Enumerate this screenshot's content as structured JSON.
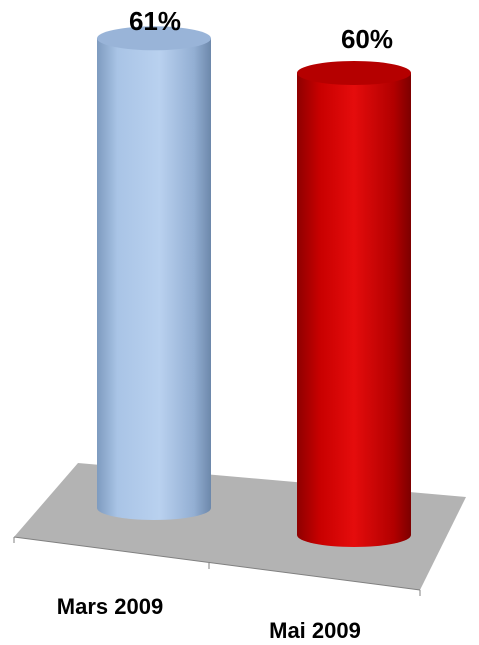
{
  "chart_data": {
    "type": "bar",
    "style": "3d-cylinder",
    "categories": [
      "Mars 2009",
      "Mai 2009"
    ],
    "values": [
      61,
      60
    ],
    "value_labels": [
      "61%",
      "60%"
    ],
    "unit": "%",
    "colors": [
      "#a9c4e6",
      "#cc0000"
    ],
    "floor_color": "#b3b3b3",
    "grid": false,
    "legend": "none"
  }
}
